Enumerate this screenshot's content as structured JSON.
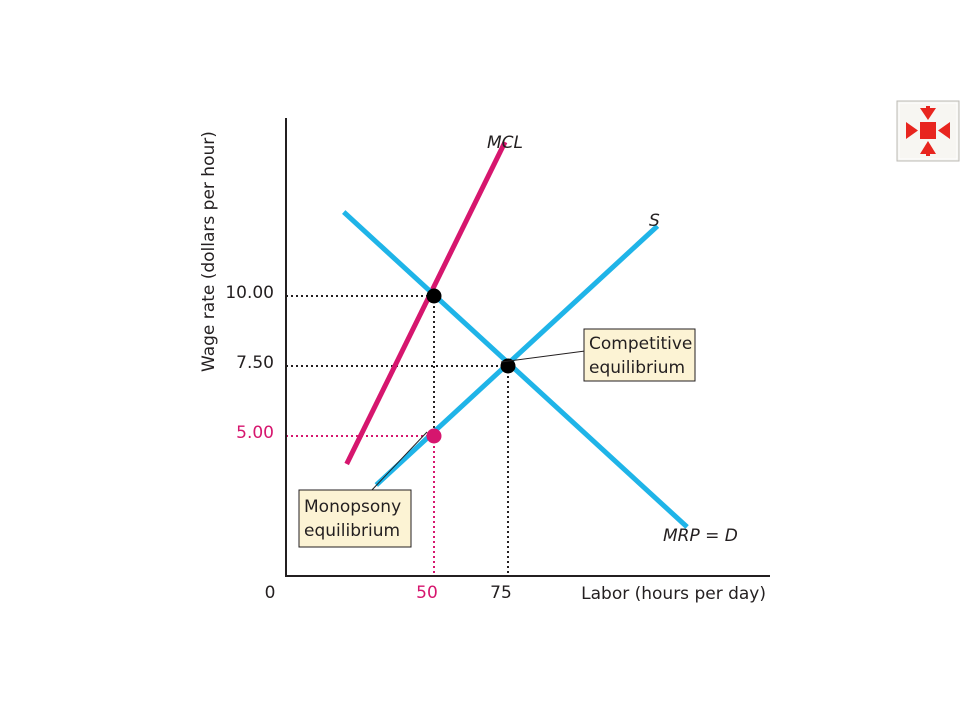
{
  "chart_data": {
    "type": "line",
    "xlabel": "Labor (hours per day)",
    "ylabel": "Wage rate (dollars per hour)",
    "origin_label": "0",
    "x_ticks": [
      {
        "value": 50,
        "label": "50",
        "color": "#d6166e"
      },
      {
        "value": 75,
        "label": "75",
        "color": "#231f20"
      }
    ],
    "y_ticks": [
      {
        "value": 5.0,
        "label": "5.00",
        "color": "#d6166e"
      },
      {
        "value": 7.5,
        "label": "7.50",
        "color": "#231f20"
      },
      {
        "value": 10.0,
        "label": "10.00",
        "color": "#231f20"
      }
    ],
    "xlim": [
      0,
      167
    ],
    "ylim": [
      0,
      16.25
    ],
    "series": [
      {
        "name": "MCL",
        "color": "#d6166e",
        "x": [
          20.5,
          74
        ],
        "y": [
          4.0,
          15.5
        ]
      },
      {
        "name": "S",
        "color": "#1fb4e8",
        "x": [
          30.5,
          125.5
        ],
        "y": [
          3.25,
          12.5
        ]
      },
      {
        "name": "MRP = D",
        "color": "#1fb4e8",
        "x": [
          19.5,
          135.5
        ],
        "y": [
          13.0,
          1.75
        ]
      }
    ],
    "points": [
      {
        "name": "mcl-mrp-intersection",
        "x": 50,
        "y": 10.0,
        "color": "#000000"
      },
      {
        "name": "competitive-equilibrium",
        "x": 75,
        "y": 7.5,
        "color": "#000000"
      },
      {
        "name": "monopsony-equilibrium",
        "x": 50,
        "y": 5.0,
        "color": "#d6166e"
      }
    ],
    "annotations": [
      {
        "name": "competitive-equilibrium-callout",
        "lines": [
          "Competitive",
          "equilibrium"
        ]
      },
      {
        "name": "monopsony-equilibrium-callout",
        "lines": [
          "Monopsony",
          "equilibrium"
        ]
      }
    ]
  },
  "colors": {
    "mcl": "#d6166e",
    "blue": "#1fb4e8",
    "axis": "#231f20",
    "callout_fill": "#fcf3d4",
    "nav_icon": "#e8251f",
    "nav_bg": "#f1f0ec"
  },
  "nav_button_icon": "collapse-arrows-icon"
}
